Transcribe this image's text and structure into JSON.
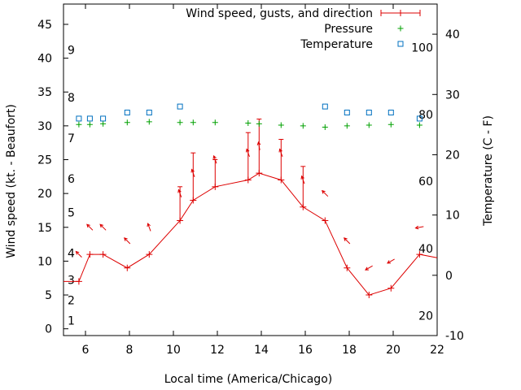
{
  "chart_data": {
    "type": "line",
    "title": "",
    "xlabel": "Local time (America/Chicago)",
    "ylabel": "Wind speed (kt. - Beaufort)",
    "y2label": "Temperature (C - F)",
    "xlim": [
      5,
      22
    ],
    "ylim": [
      -1,
      48
    ],
    "y2lim": [
      -10,
      45
    ],
    "xticks": [
      6,
      8,
      10,
      12,
      14,
      16,
      18,
      20,
      22
    ],
    "yticks": [
      0,
      5,
      10,
      15,
      20,
      25,
      30,
      35,
      40,
      45
    ],
    "y2ticks": [
      -10,
      0,
      10,
      20,
      30,
      40
    ],
    "beaufort_labels": [
      {
        "text": "1",
        "y": 1.2
      },
      {
        "text": "2",
        "y": 4.2
      },
      {
        "text": "3",
        "y": 7.2
      },
      {
        "text": "4",
        "y": 11.2
      },
      {
        "text": "5",
        "y": 17.2
      },
      {
        "text": "6",
        "y": 22.2
      },
      {
        "text": "7",
        "y": 28.2
      },
      {
        "text": "8",
        "y": 34.2
      },
      {
        "text": "9",
        "y": 41.2
      }
    ],
    "fahrenheit_labels": [
      {
        "text": "20",
        "y": -6.7
      },
      {
        "text": "40",
        "y": 4.4
      },
      {
        "text": "60",
        "y": 15.6
      },
      {
        "text": "80",
        "y": 26.7
      },
      {
        "text": "100",
        "y": 37.8
      }
    ],
    "legend": {
      "position": "top-right",
      "entries": [
        {
          "label": "Wind speed, gusts, and direction",
          "color": "#dd0000",
          "symbol": "line-errorbar"
        },
        {
          "label": "Pressure",
          "color": "#00a000",
          "symbol": "plus"
        },
        {
          "label": "Temperature",
          "color": "#0070c0",
          "symbol": "square"
        }
      ]
    },
    "series": [
      {
        "name": "Wind speed, gusts, and direction",
        "color": "#dd0000",
        "x": [
          5,
          5.7,
          6.2,
          6.8,
          7.9,
          8.9,
          10.3,
          10.9,
          11.9,
          13.4,
          13.9,
          14.9,
          15.9,
          16.9,
          17.9,
          18.9,
          19.9,
          21.2,
          22
        ],
        "y": [
          7,
          7,
          11,
          11,
          9,
          11,
          16,
          19,
          21,
          22,
          23,
          22,
          18,
          16,
          9,
          5,
          6,
          11,
          10.5
        ],
        "gusts": [
          null,
          null,
          null,
          null,
          null,
          null,
          21,
          26,
          25,
          29,
          31,
          28,
          24,
          null,
          null,
          null,
          null,
          null,
          null
        ],
        "direction_deg": [
          null,
          135,
          135,
          135,
          135,
          160,
          160,
          160,
          160,
          160,
          170,
          160,
          160,
          135,
          135,
          60,
          60,
          80,
          null
        ]
      },
      {
        "name": "Pressure",
        "color": "#00a000",
        "x": [
          5.7,
          6.2,
          6.8,
          7.9,
          8.9,
          10.3,
          10.9,
          11.9,
          13.4,
          13.9,
          14.9,
          15.9,
          16.9,
          17.9,
          18.9,
          19.9,
          21.2
        ],
        "y": [
          30.2,
          30.2,
          30.3,
          30.5,
          30.6,
          30.5,
          30.5,
          30.5,
          30.4,
          30.3,
          30.1,
          30.0,
          29.8,
          30.0,
          30.1,
          30.2,
          30.1
        ]
      },
      {
        "name": "Temperature",
        "color": "#0070c0",
        "axis": "y2",
        "x": [
          5.7,
          6.2,
          6.8,
          7.9,
          8.9,
          10.3,
          16.9,
          17.9,
          18.9,
          19.9,
          21.2
        ],
        "y": [
          26,
          26,
          26,
          27,
          27,
          28,
          28,
          27,
          27,
          27,
          26
        ]
      }
    ]
  }
}
